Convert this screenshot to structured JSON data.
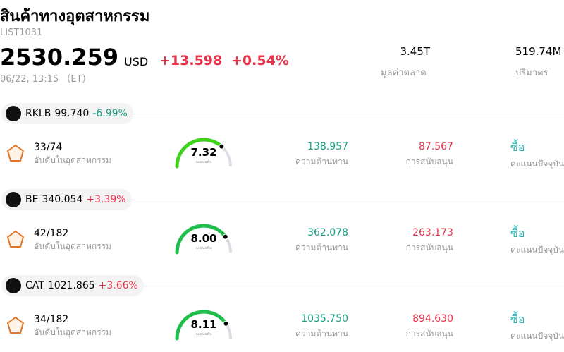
{
  "header": {
    "title": "สินค้าทางอุตสาหกรรม",
    "code": "LIST1031",
    "price": "2530.259",
    "currency": "USD",
    "change": "+13.598",
    "change_pct": "+0.54%",
    "time": "06/22, 13:15 （ET）",
    "market_cap": "3.45T",
    "market_cap_label": "มูลค่าตลาด",
    "volume": "519.74M",
    "volume_label": "ปริมาตร"
  },
  "stocks": [
    {
      "ticker": "RKLB",
      "price": "99.740",
      "change": "-6.99%",
      "rank": "33/74",
      "rank_label": "อันดับในอุตสาหกรรม",
      "score": "7.32",
      "score_label": "คะแนนหุ้น",
      "resistance": "138.957",
      "resistance_label": "ความต้านทาน",
      "support": "87.567",
      "support_label": "การสนับสนุน",
      "rating": "ซื้อ",
      "rating_label": "คะแนนปัจจุบัน"
    },
    {
      "ticker": "BE",
      "price": "340.054",
      "change": "+3.39%",
      "rank": "42/182",
      "rank_label": "อันดับในอุตสาหกรรม",
      "score": "8.00",
      "score_label": "คะแนนหุ้น",
      "resistance": "362.078",
      "resistance_label": "ความต้านทาน",
      "support": "263.173",
      "support_label": "การสนับสนุน",
      "rating": "ซื้อ",
      "rating_label": "คะแนนปัจจุบัน"
    },
    {
      "ticker": "CAT",
      "price": "1021.865",
      "change": "+3.66%",
      "rank": "34/182",
      "rank_label": "อันดับในอุตสาหกรรม",
      "score": "8.11",
      "score_label": "คะแนนหุ้น",
      "resistance": "1035.750",
      "resistance_label": "ความต้านทาน",
      "support": "894.630",
      "support_label": "การสนับสนุน",
      "rating": "ซื้อ",
      "rating_label": "คะแนนปัจจุบัน"
    }
  ]
}
